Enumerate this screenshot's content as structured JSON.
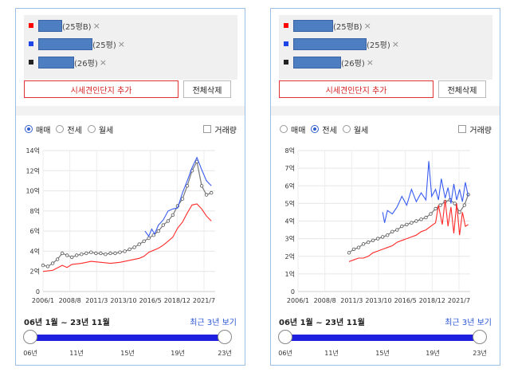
{
  "colors": {
    "sale": "#777777",
    "jeonse": "#ff2a2a",
    "rent": "#3a5cf0",
    "accent": "#2a55d6",
    "track": "#1f1fe0"
  },
  "panels": [
    {
      "complexes": [
        {
          "size": "(25평B)",
          "color": "#ff0000",
          "close": "×",
          "color_label": "red"
        },
        {
          "size": "(25평)",
          "color": "#1d45e8",
          "close": "×",
          "color_label": "blue"
        },
        {
          "size": "(26평)",
          "color": "#222222",
          "close": "×",
          "color_label": "black"
        }
      ],
      "add_button": "시세견인단지 추가",
      "clear_button": "전체삭제",
      "tabs": [
        {
          "label": "매매",
          "selected": true
        },
        {
          "label": "전세",
          "selected": false
        },
        {
          "label": "월세",
          "selected": false
        }
      ],
      "volume_label": "거래량",
      "chart_data": {
        "type": "line",
        "y_ticks": [
          "14억",
          "12억",
          "10억",
          "8억",
          "6억",
          "4억",
          "2억",
          "0"
        ],
        "x_ticks": [
          "2006/1",
          "2008/8",
          "2011/3",
          "2013/10",
          "2016/5",
          "2018/12",
          "2021/7"
        ],
        "ylim": [
          0,
          14
        ],
        "xlim": [
          2006.0,
          2023.9
        ],
        "series": [
          {
            "color": "#777777",
            "markers": true,
            "x": [
              2006.0,
              2006.5,
              2007.0,
              2007.5,
              2008.0,
              2008.5,
              2009.0,
              2009.5,
              2010.0,
              2010.5,
              2011.0,
              2011.5,
              2012.0,
              2012.5,
              2013.0,
              2013.5,
              2014.0,
              2014.5,
              2015.0,
              2015.5,
              2016.0,
              2016.5,
              2017.0,
              2017.5,
              2018.0,
              2018.5,
              2019.0,
              2019.5,
              2020.0,
              2020.5,
              2021.0,
              2021.5,
              2022.0,
              2022.5,
              2023.0,
              2023.5
            ],
            "y": [
              2.6,
              2.5,
              2.8,
              3.2,
              3.8,
              3.6,
              3.4,
              3.6,
              3.7,
              3.8,
              3.9,
              3.8,
              3.8,
              3.7,
              3.8,
              3.8,
              3.9,
              4.0,
              4.2,
              4.4,
              4.7,
              5.0,
              5.3,
              5.6,
              6.0,
              6.6,
              7.0,
              7.6,
              8.5,
              9.2,
              10.5,
              12.0,
              12.9,
              10.5,
              9.6,
              9.8
            ]
          },
          {
            "color": "#ff2a2a",
            "markers": false,
            "x": [
              2006.0,
              2007.0,
              2008.0,
              2008.5,
              2009.0,
              2010.0,
              2011.0,
              2012.0,
              2013.0,
              2014.0,
              2015.0,
              2016.0,
              2016.5,
              2017.0,
              2018.0,
              2018.5,
              2019.0,
              2019.5,
              2020.0,
              2020.5,
              2021.0,
              2021.5,
              2022.0,
              2022.5,
              2023.0,
              2023.5
            ],
            "y": [
              2.0,
              2.1,
              2.6,
              2.4,
              2.7,
              2.8,
              3.0,
              2.9,
              2.8,
              2.9,
              3.1,
              3.3,
              3.5,
              3.9,
              4.3,
              4.6,
              5.0,
              5.4,
              6.3,
              6.9,
              7.8,
              8.6,
              8.7,
              8.2,
              7.5,
              7.0
            ]
          },
          {
            "color": "#3a5cf0",
            "markers": false,
            "x": [
              2016.6,
              2017.0,
              2017.3,
              2017.6,
              2018.0,
              2018.5,
              2019.0,
              2019.5,
              2020.0,
              2020.5,
              2021.0,
              2021.5,
              2022.0,
              2022.5,
              2023.0,
              2023.5
            ],
            "y": [
              6.0,
              5.5,
              6.2,
              5.7,
              6.6,
              7.1,
              8.0,
              8.2,
              8.3,
              9.8,
              11.0,
              12.3,
              13.3,
              12.1,
              11.0,
              10.5
            ]
          }
        ]
      },
      "range_text": "06년 1월 ~ 23년 11월",
      "recent_label": "최근 3년 보기",
      "slider_ticks": [
        "06년",
        "11년",
        "15년",
        "19년",
        "23년"
      ]
    },
    {
      "complexes": [
        {
          "size": "(25평B)",
          "color": "#ff0000",
          "close": "×",
          "color_label": "red"
        },
        {
          "size": "(25평)",
          "color": "#1d45e8",
          "close": "×",
          "color_label": "blue"
        },
        {
          "size": "(26평)",
          "color": "#222222",
          "close": "×",
          "color_label": "black"
        }
      ],
      "add_button": "시세견인단지 추가",
      "clear_button": "전체삭제",
      "tabs": [
        {
          "label": "매매",
          "selected": false
        },
        {
          "label": "전세",
          "selected": true
        },
        {
          "label": "월세",
          "selected": false
        }
      ],
      "volume_label": "거래량",
      "chart_data": {
        "type": "line",
        "y_ticks": [
          "8억",
          "7억",
          "6억",
          "5억",
          "4억",
          "3억",
          "2억",
          "1억",
          "0"
        ],
        "x_ticks": [
          "2006/1",
          "2008/8",
          "2011/3",
          "2013/10",
          "2016/5",
          "2018/12",
          "2021/7"
        ],
        "ylim": [
          0,
          8
        ],
        "xlim": [
          2006.0,
          2023.9
        ],
        "series": [
          {
            "color": "#777777",
            "markers": true,
            "x": [
              2011.3,
              2011.8,
              2012.3,
              2012.8,
              2013.3,
              2013.8,
              2014.3,
              2014.8,
              2015.3,
              2015.8,
              2016.3,
              2016.8,
              2017.3,
              2017.8,
              2018.3,
              2018.8,
              2019.3,
              2019.8,
              2020.3,
              2020.8,
              2021.3,
              2021.8,
              2022.3,
              2022.8,
              2023.3,
              2023.7
            ],
            "y": [
              2.2,
              2.4,
              2.5,
              2.7,
              2.8,
              2.9,
              3.0,
              3.1,
              3.2,
              3.4,
              3.5,
              3.7,
              3.8,
              3.9,
              4.0,
              4.1,
              4.2,
              4.4,
              4.7,
              4.9,
              5.1,
              5.2,
              5.0,
              4.5,
              4.9,
              5.5
            ]
          },
          {
            "color": "#ff2a2a",
            "markers": false,
            "x": [
              2011.3,
              2011.8,
              2012.3,
              2012.8,
              2013.3,
              2013.8,
              2014.3,
              2014.8,
              2015.3,
              2015.8,
              2016.3,
              2016.8,
              2017.3,
              2017.8,
              2018.3,
              2018.8,
              2019.3,
              2019.8,
              2020.3,
              2020.6,
              2021.0,
              2021.3,
              2021.6,
              2021.9,
              2022.2,
              2022.5,
              2022.8,
              2023.1,
              2023.4,
              2023.7
            ],
            "y": [
              1.7,
              1.8,
              1.9,
              1.9,
              2.0,
              2.2,
              2.3,
              2.4,
              2.5,
              2.6,
              2.8,
              2.9,
              3.0,
              3.1,
              3.2,
              3.4,
              3.5,
              3.7,
              3.9,
              4.9,
              3.8,
              5.2,
              3.7,
              4.8,
              3.3,
              5.0,
              3.2,
              4.5,
              3.7,
              3.8
            ]
          },
          {
            "color": "#3a5cf0",
            "markers": false,
            "x": [
              2014.8,
              2015.0,
              2015.3,
              2015.8,
              2016.3,
              2016.8,
              2017.3,
              2017.8,
              2018.3,
              2018.8,
              2019.3,
              2019.6,
              2019.9,
              2020.3,
              2020.6,
              2020.9,
              2021.3,
              2021.6,
              2021.9,
              2022.2,
              2022.5,
              2022.8,
              2023.1,
              2023.4,
              2023.7
            ],
            "y": [
              4.5,
              3.9,
              4.6,
              4.4,
              4.8,
              5.4,
              4.9,
              5.8,
              5.1,
              5.6,
              5.2,
              7.4,
              5.4,
              5.8,
              5.2,
              6.4,
              5.3,
              5.9,
              5.0,
              6.1,
              5.2,
              5.8,
              5.1,
              6.2,
              5.4
            ]
          }
        ]
      },
      "range_text": "06년 1월 ~ 23년 11월",
      "recent_label": "최근 3년 보기",
      "slider_ticks": [
        "06년",
        "11년",
        "15년",
        "19년",
        "23년"
      ]
    }
  ]
}
